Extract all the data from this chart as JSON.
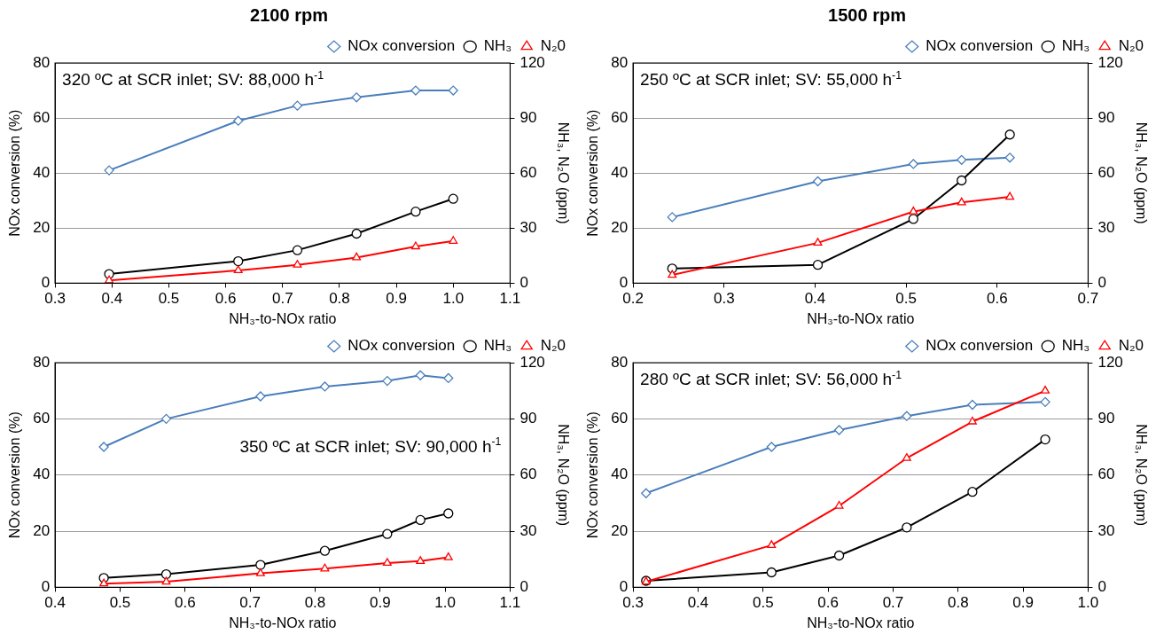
{
  "chart_data": [
    {
      "type": "line",
      "title": "2100 rpm",
      "xlabel": "NH₃-to-NOx ratio",
      "ylabel": "NOx conversion (%)",
      "y2label": "NH₃, N₂O (ppm)",
      "annotations": [
        "320 ºC at SCR inlet; SV: 88,000 h$^{-1}$"
      ],
      "x": [
        0.395,
        0.622,
        0.726,
        0.83,
        0.934,
        1.0
      ],
      "series": [
        {
          "name": "NOx conversion",
          "color": "#4a7ebb",
          "marker": "diamond",
          "values": [
            41,
            59,
            64.5,
            67.5,
            70,
            70
          ]
        },
        {
          "name": "NH₃",
          "color": "#000000",
          "marker": "circle",
          "axis": "y2",
          "values": [
            5,
            12,
            18,
            27,
            39,
            46
          ]
        },
        {
          "name": "N₂0",
          "color": "#ff0000",
          "marker": "triangle",
          "axis": "y2",
          "values": [
            1.5,
            7,
            10,
            14,
            20,
            23
          ]
        }
      ],
      "xlim": [
        0.3,
        1.1
      ],
      "xticks": [
        {
          "value": 0.3,
          "label": "0.3"
        },
        {
          "value": 0.4,
          "label": "0.4"
        },
        {
          "value": 0.5,
          "label": "0.5"
        },
        {
          "value": 0.6,
          "label": "0.6"
        },
        {
          "value": 0.7,
          "label": "0.7"
        },
        {
          "value": 0.8,
          "label": "0.8"
        },
        {
          "value": 0.9,
          "label": "0.9"
        },
        {
          "value": 1.0,
          "label": "1.0"
        },
        {
          "value": 1.1,
          "label": "1.1"
        }
      ],
      "ylim": [
        0,
        80
      ],
      "yticks": [
        0,
        20,
        40,
        60,
        80
      ],
      "y2lim": [
        0,
        120
      ],
      "y2ticks": [
        0,
        30,
        60,
        90,
        120
      ],
      "grid": "y",
      "legend": "top right",
      "line_style": "solid"
    },
    {
      "type": "line",
      "title": "1500 rpm",
      "xlabel": "NH₃-to-NOx ratio",
      "ylabel": "NOx conversion (%)",
      "y2label": "NH₃, N₂O (ppm)",
      "annotations": [
        "250 ºC at SCR inlet; SV: 55,000 h$^{-1}$"
      ],
      "x": [
        0.243,
        0.403,
        0.508,
        0.561,
        0.614
      ],
      "series": [
        {
          "name": "NOx conversion",
          "color": "#4a7ebb",
          "marker": "diamond",
          "values": [
            24,
            37,
            43.3,
            44.8,
            45.6
          ]
        },
        {
          "name": "NH₃",
          "color": "#000000",
          "marker": "circle",
          "axis": "y2",
          "values": [
            8,
            10,
            35,
            56,
            81
          ]
        },
        {
          "name": "N₂0",
          "color": "#ff0000",
          "marker": "triangle",
          "axis": "y2",
          "values": [
            4.5,
            22,
            39,
            44,
            47
          ]
        }
      ],
      "xlim": [
        0.2,
        0.7
      ],
      "xticks": [
        {
          "value": 0.2,
          "label": "0.2"
        },
        {
          "value": 0.3,
          "label": "0.3"
        },
        {
          "value": 0.4,
          "label": "0.4"
        },
        {
          "value": 0.5,
          "label": "0.5"
        },
        {
          "value": 0.6,
          "label": "0.6"
        },
        {
          "value": 0.7,
          "label": "0.7"
        }
      ],
      "ylim": [
        0,
        80
      ],
      "yticks": [
        0,
        20,
        40,
        60,
        80
      ],
      "y2lim": [
        0,
        120
      ],
      "y2ticks": [
        0,
        30,
        60,
        90,
        120
      ],
      "grid": "y",
      "legend": "top right",
      "line_style": "solid"
    },
    {
      "type": "line",
      "xlabel": "NH₃-to-NOx ratio",
      "ylabel": "NOx conversion (%)",
      "y2label": "NH₃, N₂O (ppm)",
      "annotations": [
        "350 ºC at SCR inlet; SV: 90,000 h$^{-1}$"
      ],
      "x": [
        0.475,
        0.571,
        0.716,
        0.815,
        0.911,
        0.962,
        1.005
      ],
      "series": [
        {
          "name": "NOx conversion",
          "color": "#4a7ebb",
          "marker": "diamond",
          "values": [
            50,
            60,
            68,
            71.5,
            73.5,
            75.5,
            74.5
          ]
        },
        {
          "name": "NH₃",
          "color": "#000000",
          "marker": "circle",
          "axis": "y2",
          "values": [
            5,
            7,
            12,
            19.5,
            28.5,
            36,
            39.5
          ]
        },
        {
          "name": "N₂0",
          "color": "#ff0000",
          "marker": "triangle",
          "axis": "y2",
          "values": [
            2,
            3,
            7.5,
            10,
            13,
            14,
            16
          ]
        }
      ],
      "xlim": [
        0.4,
        1.1
      ],
      "xticks": [
        {
          "value": 0.4,
          "label": "0.4"
        },
        {
          "value": 0.5,
          "label": "0.5"
        },
        {
          "value": 0.6,
          "label": "0.6"
        },
        {
          "value": 0.7,
          "label": "0.7"
        },
        {
          "value": 0.8,
          "label": "0.8"
        },
        {
          "value": 0.9,
          "label": "0.9"
        },
        {
          "value": 1.0,
          "label": "1.0"
        },
        {
          "value": 1.1,
          "label": "1.1"
        }
      ],
      "ylim": [
        0,
        80
      ],
      "yticks": [
        0,
        20,
        40,
        60,
        80
      ],
      "y2lim": [
        0,
        120
      ],
      "y2ticks": [
        0,
        30,
        60,
        90,
        120
      ],
      "grid": "y",
      "legend": "top right",
      "line_style": "solid"
    },
    {
      "type": "line",
      "xlabel": "NH₃-to-NOx ratio",
      "ylabel": "NOx conversion (%)",
      "y2label": "NH₃, N₂O (ppm)",
      "annotations": [
        "280 ºC at SCR inlet; SV: 56,000 h$^{-1}$"
      ],
      "x": [
        0.32,
        0.513,
        0.617,
        0.721,
        0.822,
        0.934
      ],
      "series": [
        {
          "name": "NOx conversion",
          "color": "#4a7ebb",
          "marker": "diamond",
          "values": [
            33.5,
            50,
            56,
            61,
            65,
            66
          ]
        },
        {
          "name": "NH₃",
          "color": "#000000",
          "marker": "circle",
          "axis": "y2",
          "values": [
            3.5,
            8,
            17,
            32,
            51,
            79
          ]
        },
        {
          "name": "N₂0",
          "color": "#ff0000",
          "marker": "triangle",
          "axis": "y2",
          "values": [
            3,
            22.5,
            43.5,
            69,
            88.5,
            105
          ]
        }
      ],
      "xlim": [
        0.3,
        1.0
      ],
      "xticks": [
        {
          "value": 0.3,
          "label": "0.3"
        },
        {
          "value": 0.4,
          "label": "0.4"
        },
        {
          "value": 0.5,
          "label": "0.5"
        },
        {
          "value": 0.6,
          "label": "0.6"
        },
        {
          "value": 0.7,
          "label": "0.7"
        },
        {
          "value": 0.8,
          "label": "0.8"
        },
        {
          "value": 0.9,
          "label": "0.9"
        },
        {
          "value": 1.0,
          "label": "1.0"
        }
      ],
      "ylim": [
        0,
        80
      ],
      "yticks": [
        0,
        20,
        40,
        60,
        80
      ],
      "y2lim": [
        0,
        120
      ],
      "y2ticks": [
        0,
        30,
        60,
        90,
        120
      ],
      "grid": "y",
      "legend": "top right",
      "line_style": "solid"
    }
  ]
}
